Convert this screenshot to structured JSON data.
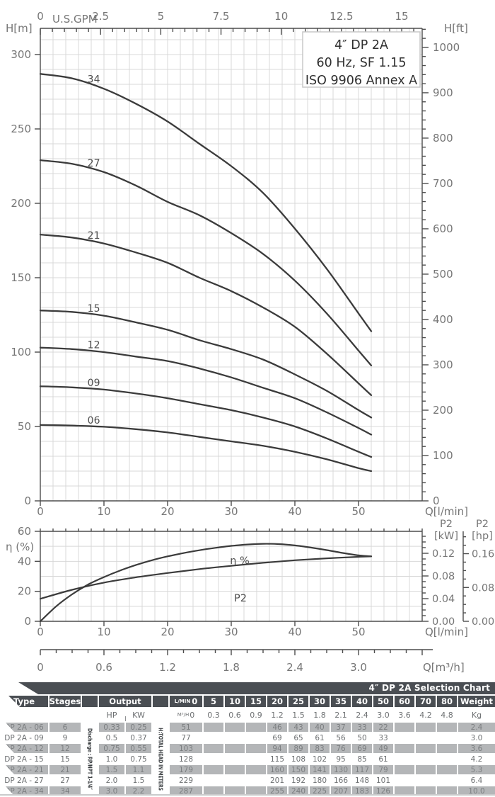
{
  "colors": {
    "curve": "#3b3b3b",
    "grid": "#d8d8d8",
    "axis": "#4d4d4d",
    "tick_label": "#767676",
    "curve_label": "#4f4f4f",
    "title_text": "#2f2f2f"
  },
  "chart_data": [
    {
      "type": "line",
      "title": "4″ DP 2A",
      "title_lines": [
        "4″ DP 2A",
        "60 Hz, SF 1.15",
        "ISO 9906 Annex A"
      ],
      "xlabel_top": "U.S.GPM",
      "xlabel_bottom": "Q[l/min]",
      "ylabel_left": "H[m]",
      "ylabel_right": "H[ft]",
      "x_ticks_gpm": [
        "0",
        "2.5",
        "5",
        "7.5",
        "10",
        "12.5",
        "15"
      ],
      "x_ticks_lmin": [
        0,
        10,
        20,
        30,
        40,
        50
      ],
      "y_ticks_m": [
        0,
        50,
        100,
        150,
        200,
        250,
        300
      ],
      "y_ticks_ft": [
        0,
        100,
        200,
        300,
        400,
        500,
        600,
        700,
        800,
        900,
        1000
      ],
      "xlim_lmin": [
        0,
        60
      ],
      "ylim_m": [
        0,
        317
      ],
      "grid": "on",
      "series": [
        {
          "name": "34",
          "points": [
            [
              0,
              287
            ],
            [
              5,
              284
            ],
            [
              10,
              277
            ],
            [
              15,
              267
            ],
            [
              20,
              255
            ],
            [
              25,
              240
            ],
            [
              30,
              225
            ],
            [
              35,
              207
            ],
            [
              40,
              183
            ],
            [
              45,
              156
            ],
            [
              50,
              126
            ],
            [
              52,
              114
            ]
          ]
        },
        {
          "name": "27",
          "points": [
            [
              0,
              229
            ],
            [
              5,
              226.5
            ],
            [
              10,
              221
            ],
            [
              15,
              212
            ],
            [
              20,
              201
            ],
            [
              25,
              192
            ],
            [
              30,
              180
            ],
            [
              35,
              166
            ],
            [
              40,
              148
            ],
            [
              45,
              126
            ],
            [
              50,
              101
            ],
            [
              52,
              91
            ]
          ]
        },
        {
          "name": "21",
          "points": [
            [
              0,
              179
            ],
            [
              5,
              177
            ],
            [
              10,
              173
            ],
            [
              15,
              167
            ],
            [
              20,
              160
            ],
            [
              25,
              150
            ],
            [
              30,
              141
            ],
            [
              35,
              130
            ],
            [
              40,
              117
            ],
            [
              45,
              99
            ],
            [
              50,
              79
            ],
            [
              52,
              71
            ]
          ]
        },
        {
          "name": "15",
          "points": [
            [
              0,
              128
            ],
            [
              5,
              127
            ],
            [
              10,
              124.5
            ],
            [
              15,
              120
            ],
            [
              20,
              115
            ],
            [
              25,
              108
            ],
            [
              30,
              102
            ],
            [
              35,
              95
            ],
            [
              40,
              85
            ],
            [
              45,
              74
            ],
            [
              50,
              61
            ],
            [
              52,
              56
            ]
          ]
        },
        {
          "name": "12",
          "points": [
            [
              0,
              103
            ],
            [
              5,
              102
            ],
            [
              10,
              100
            ],
            [
              15,
              97
            ],
            [
              20,
              94
            ],
            [
              25,
              89
            ],
            [
              30,
              83
            ],
            [
              35,
              76
            ],
            [
              40,
              69
            ],
            [
              45,
              59.5
            ],
            [
              50,
              49
            ],
            [
              52,
              44.5
            ]
          ]
        },
        {
          "name": "09",
          "points": [
            [
              0,
              77
            ],
            [
              5,
              76.3
            ],
            [
              10,
              74.8
            ],
            [
              15,
              72.2
            ],
            [
              20,
              69
            ],
            [
              25,
              65
            ],
            [
              30,
              61
            ],
            [
              35,
              56
            ],
            [
              40,
              50
            ],
            [
              45,
              42
            ],
            [
              50,
              33
            ],
            [
              52,
              29.5
            ]
          ]
        },
        {
          "name": "06",
          "points": [
            [
              0,
              51
            ],
            [
              5,
              50.6
            ],
            [
              10,
              49.8
            ],
            [
              15,
              48.2
            ],
            [
              20,
              46
            ],
            [
              25,
              43
            ],
            [
              30,
              40
            ],
            [
              35,
              37
            ],
            [
              40,
              33
            ],
            [
              45,
              28
            ],
            [
              50,
              22
            ],
            [
              52,
              20
            ]
          ]
        }
      ]
    },
    {
      "type": "line",
      "ylabel_left": "η (%)",
      "eta_ticks": [
        0,
        20,
        40,
        60
      ],
      "p2_kw_title": "P2",
      "p2_kw_unit": "[kW]",
      "p2_hp_title": "P2",
      "p2_hp_unit": "[hp]",
      "kw_ticks": [
        "0.00",
        "0.04",
        "0.08",
        "0.12"
      ],
      "hp_ticks": [
        "0.00",
        "0.08",
        "0.16"
      ],
      "x_ticks_lmin": [
        0,
        10,
        20,
        30,
        40,
        50
      ],
      "xlabel_lmin": "Q[l/min]",
      "m3h_ticks": [
        "0",
        "0.6",
        "1.2",
        "1.8",
        "2.4",
        "3.0"
      ],
      "xlabel_m3h": "Q[m³/h]",
      "eta_series": {
        "label": "η %",
        "points": [
          [
            0,
            0
          ],
          [
            2.5,
            10
          ],
          [
            5,
            18
          ],
          [
            7.5,
            24.5
          ],
          [
            10,
            29.5
          ],
          [
            12.5,
            33.8
          ],
          [
            15,
            37.5
          ],
          [
            17.5,
            40.7
          ],
          [
            20,
            43.3
          ],
          [
            22.5,
            45.5
          ],
          [
            25,
            47.4
          ],
          [
            27.5,
            49
          ],
          [
            30,
            50.3
          ],
          [
            32.5,
            51.2
          ],
          [
            35,
            51.7
          ],
          [
            37.5,
            51.5
          ],
          [
            40,
            50.6
          ],
          [
            42.5,
            49.2
          ],
          [
            45,
            47.5
          ],
          [
            47.5,
            45.6
          ],
          [
            50,
            44
          ],
          [
            52,
            43.3
          ]
        ]
      },
      "p2_series": {
        "label": "P2",
        "points_kw": [
          [
            0,
            0.0397
          ],
          [
            5,
            0.0556
          ],
          [
            10,
            0.0683
          ],
          [
            15,
            0.0776
          ],
          [
            20,
            0.0852
          ],
          [
            25,
            0.0921
          ],
          [
            30,
            0.0979
          ],
          [
            35,
            0.1032
          ],
          [
            40,
            0.1077
          ],
          [
            45,
            0.1111
          ],
          [
            50,
            0.1138
          ],
          [
            52,
            0.1146
          ]
        ]
      }
    }
  ],
  "table": {
    "banner": "4″ DP 2A Selection Chart",
    "header": {
      "type": "Type",
      "stages": "Stages",
      "output": "Output",
      "hp": "HP",
      "kw": "KW",
      "lmin": "L/MIN",
      "m3h": "M³/H",
      "weight": "Weight",
      "kg": "Kg",
      "flow_lmin": [
        "0",
        "5",
        "10",
        "15",
        "20",
        "25",
        "30",
        "35",
        "40",
        "50",
        "60",
        "70",
        "80"
      ],
      "flow_m3h": [
        "0",
        "0.3",
        "0.6",
        "0.9",
        "1.2",
        "1.5",
        "1.8",
        "2.1",
        "2.4",
        "3.0",
        "3.6",
        "4.2",
        "4.8"
      ]
    },
    "discharge_label": "Discharge : RP/NPT 1-1/4″",
    "head_label": "H:TOTAL HEAD IN METERS",
    "rows": [
      {
        "type": "DP 2A - 06",
        "stages": "6",
        "hp": "0.33",
        "kw": "0.25",
        "heads": [
          "51",
          "",
          "",
          "",
          "46",
          "43",
          "40",
          "37",
          "33",
          "22",
          "",
          "",
          ""
        ],
        "weight": "2.4",
        "shaded": true
      },
      {
        "type": "DP 2A - 09",
        "stages": "9",
        "hp": "0.5",
        "kw": "0.37",
        "heads": [
          "77",
          "",
          "",
          "",
          "69",
          "65",
          "61",
          "56",
          "50",
          "33",
          "",
          "",
          ""
        ],
        "weight": "3.0",
        "shaded": false
      },
      {
        "type": "DP 2A - 12",
        "stages": "12",
        "hp": "0.75",
        "kw": "0.55",
        "heads": [
          "103",
          "",
          "",
          "",
          "94",
          "89",
          "83",
          "76",
          "69",
          "49",
          "",
          "",
          ""
        ],
        "weight": "3.6",
        "shaded": true
      },
      {
        "type": "DP 2A - 15",
        "stages": "15",
        "hp": "1.0",
        "kw": "0.75",
        "heads": [
          "128",
          "",
          "",
          "",
          "115",
          "108",
          "102",
          "95",
          "85",
          "61",
          "",
          "",
          ""
        ],
        "weight": "4.2",
        "shaded": false
      },
      {
        "type": "DP 2A - 21",
        "stages": "21",
        "hp": "1.5",
        "kw": "1.1",
        "heads": [
          "179",
          "",
          "",
          "",
          "160",
          "150",
          "141",
          "130",
          "117",
          "79",
          "",
          "",
          ""
        ],
        "weight": "5.3",
        "shaded": true
      },
      {
        "type": "DP 2A - 27",
        "stages": "27",
        "hp": "2.0",
        "kw": "1.5",
        "heads": [
          "229",
          "",
          "",
          "",
          "201",
          "192",
          "180",
          "166",
          "148",
          "101",
          "",
          "",
          ""
        ],
        "weight": "6.4",
        "shaded": false
      },
      {
        "type": "DP 2A - 34",
        "stages": "34",
        "hp": "3.0",
        "kw": "2.2",
        "heads": [
          "287",
          "",
          "",
          "",
          "255",
          "240",
          "225",
          "207",
          "183",
          "126",
          "",
          "",
          ""
        ],
        "weight": "10.0",
        "shaded": true
      }
    ]
  }
}
